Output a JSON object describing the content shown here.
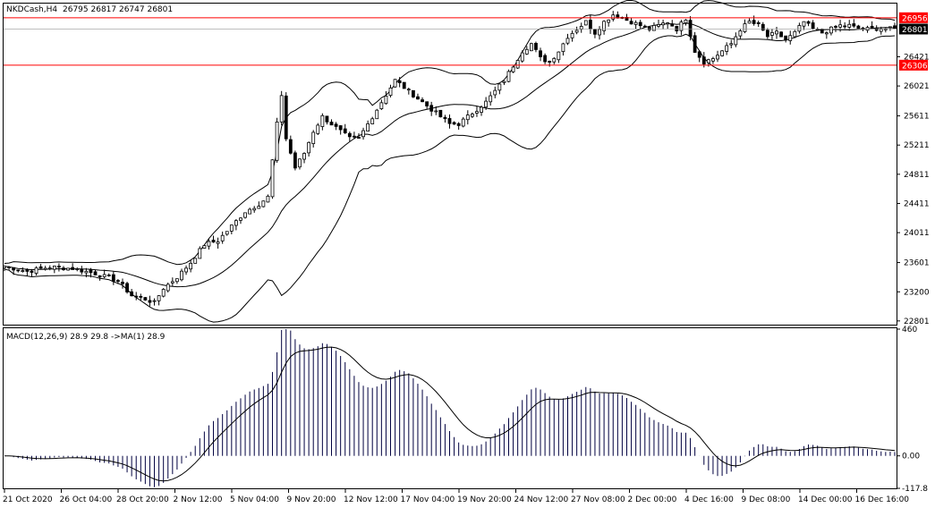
{
  "header": {
    "symbol": "NKDCash,H4",
    "ohlc": "26795 26817 26747 26801"
  },
  "indicator": {
    "label": "MACD(12,26,9) 28.9 29.8  ->MA(1) 28.9"
  },
  "colors": {
    "candle": "#000000",
    "level_line": "#ff0000",
    "level_tag_bg": "#ff0000",
    "price_tag_bg": "#000000",
    "macd_hist": "#000040",
    "bands": "#000000"
  },
  "chart_data": [
    {
      "type": "candlestick",
      "title": "NKDCash,H4",
      "y_ticks": [
        22801,
        23200,
        23601,
        24011,
        24411,
        24811,
        25211,
        25611,
        26021,
        26421
      ],
      "ylim": [
        22750,
        27150
      ],
      "horizontal_levels": [
        26956,
        26306
      ],
      "current_price": 26801,
      "x_tick_labels": [
        "21 Oct 2020",
        "26 Oct 04:00",
        "28 Oct 20:00",
        "2 Nov 12:00",
        "5 Nov 04:00",
        "9 Nov 20:00",
        "12 Nov 12:00",
        "17 Nov 04:00",
        "19 Nov 20:00",
        "24 Nov 12:00",
        "27 Nov 08:00",
        "2 Dec 00:00",
        "4 Dec 16:00",
        "9 Dec 08:00",
        "14 Dec 00:00",
        "16 Dec 16:00"
      ],
      "close_path": [
        [
          0,
          23550
        ],
        [
          5,
          23480
        ],
        [
          10,
          23540
        ],
        [
          15,
          23520
        ],
        [
          20,
          23450
        ],
        [
          25,
          23350
        ],
        [
          28,
          23150
        ],
        [
          31,
          23100
        ],
        [
          33,
          23050
        ],
        [
          35,
          23250
        ],
        [
          38,
          23400
        ],
        [
          41,
          23600
        ],
        [
          44,
          23850
        ],
        [
          47,
          23900
        ],
        [
          50,
          24100
        ],
        [
          53,
          24300
        ],
        [
          56,
          24400
        ],
        [
          58,
          24500
        ],
        [
          60,
          25500
        ],
        [
          61,
          25900
        ],
        [
          62,
          25300
        ],
        [
          64,
          24900
        ],
        [
          66,
          25100
        ],
        [
          68,
          25400
        ],
        [
          70,
          25600
        ],
        [
          72,
          25500
        ],
        [
          74,
          25400
        ],
        [
          76,
          25300
        ],
        [
          78,
          25300
        ],
        [
          80,
          25500
        ],
        [
          82,
          25700
        ],
        [
          84,
          25900
        ],
        [
          86,
          26100
        ],
        [
          88,
          26000
        ],
        [
          90,
          25900
        ],
        [
          92,
          25800
        ],
        [
          94,
          25700
        ],
        [
          96,
          25600
        ],
        [
          98,
          25500
        ],
        [
          100,
          25500
        ],
        [
          102,
          25600
        ],
        [
          104,
          25700
        ],
        [
          106,
          25800
        ],
        [
          108,
          25950
        ],
        [
          110,
          26100
        ],
        [
          112,
          26300
        ],
        [
          114,
          26500
        ],
        [
          116,
          26600
        ],
        [
          118,
          26400
        ],
        [
          120,
          26350
        ],
        [
          122,
          26500
        ],
        [
          124,
          26700
        ],
        [
          126,
          26800
        ],
        [
          128,
          26900
        ],
        [
          130,
          26750
        ],
        [
          132,
          26900
        ],
        [
          134,
          27000
        ],
        [
          136,
          26950
        ],
        [
          138,
          26900
        ],
        [
          140,
          26850
        ],
        [
          142,
          26800
        ],
        [
          144,
          26850
        ],
        [
          146,
          26900
        ],
        [
          148,
          26800
        ],
        [
          150,
          26950
        ],
        [
          152,
          26500
        ],
        [
          154,
          26350
        ],
        [
          156,
          26400
        ],
        [
          158,
          26500
        ],
        [
          160,
          26600
        ],
        [
          162,
          26800
        ],
        [
          164,
          26900
        ],
        [
          166,
          26850
        ],
        [
          168,
          26700
        ],
        [
          170,
          26750
        ],
        [
          172,
          26650
        ],
        [
          174,
          26750
        ],
        [
          176,
          26900
        ],
        [
          178,
          26800
        ],
        [
          180,
          26750
        ],
        [
          182,
          26800
        ],
        [
          184,
          26850
        ],
        [
          186,
          26850
        ],
        [
          188,
          26800
        ],
        [
          190,
          26800
        ],
        [
          192,
          26810
        ],
        [
          194,
          26805
        ],
        [
          196,
          26801
        ]
      ]
    },
    {
      "type": "macd",
      "title": "MACD(12,26,9) 28.9 29.8  ->MA(1) 28.9",
      "y_ticks": [
        460,
        0.0,
        -117.8
      ],
      "ylim": [
        -117.8,
        460
      ],
      "macd_value": 28.9,
      "signal_value": 29.8
    }
  ]
}
